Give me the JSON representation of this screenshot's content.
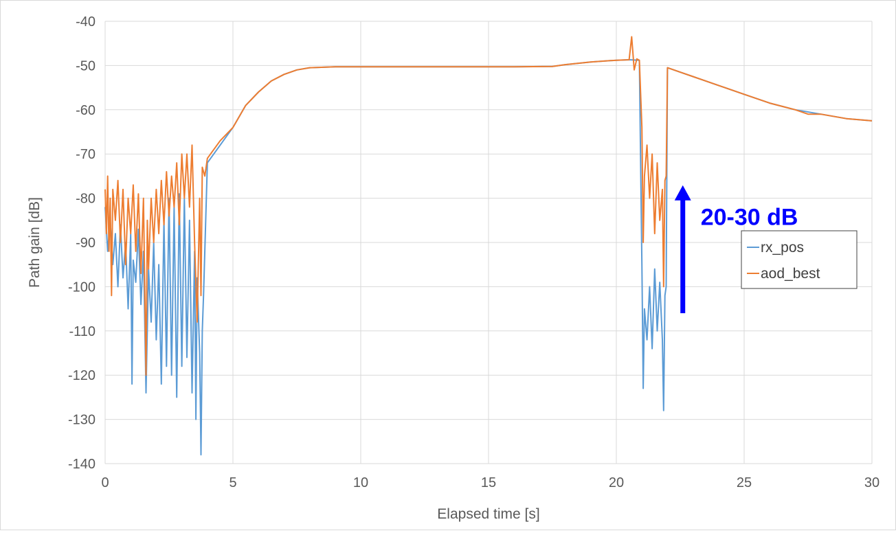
{
  "chart_data": {
    "type": "line",
    "title": "",
    "xlabel": "Elapsed time [s]",
    "ylabel": "Path gain [dB]",
    "xlim": [
      0,
      30
    ],
    "ylim": [
      -140,
      -40
    ],
    "x_ticks": [
      "0",
      "5",
      "10",
      "15",
      "20",
      "25",
      "30"
    ],
    "y_ticks": [
      "-40",
      "-50",
      "-60",
      "-70",
      "-80",
      "-90",
      "-100",
      "-110",
      "-120",
      "-130",
      "-140"
    ],
    "grid": true,
    "legend_position": "right",
    "colors": {
      "rx_pos": "#5b9bd5",
      "aod_best": "#ed7d31",
      "annotation": "#0000ff",
      "grid": "#d9d9d9"
    },
    "annotation": {
      "text": "20-30 dB",
      "arrow_from": [
        22.6,
        -106
      ],
      "arrow_to": [
        22.6,
        -78
      ]
    },
    "series": [
      {
        "name": "rx_pos",
        "color": "#5b9bd5",
        "points": [
          [
            0.0,
            -82
          ],
          [
            0.1,
            -92
          ],
          [
            0.2,
            -85
          ],
          [
            0.3,
            -95
          ],
          [
            0.4,
            -88
          ],
          [
            0.5,
            -100
          ],
          [
            0.6,
            -86
          ],
          [
            0.7,
            -98
          ],
          [
            0.8,
            -90
          ],
          [
            0.9,
            -105
          ],
          [
            1.0,
            -88
          ],
          [
            1.05,
            -122
          ],
          [
            1.1,
            -94
          ],
          [
            1.2,
            -99
          ],
          [
            1.3,
            -87
          ],
          [
            1.4,
            -104
          ],
          [
            1.5,
            -92
          ],
          [
            1.6,
            -124
          ],
          [
            1.7,
            -96
          ],
          [
            1.8,
            -108
          ],
          [
            1.9,
            -90
          ],
          [
            2.0,
            -112
          ],
          [
            2.1,
            -95
          ],
          [
            2.2,
            -122
          ],
          [
            2.3,
            -85
          ],
          [
            2.4,
            -118
          ],
          [
            2.5,
            -80
          ],
          [
            2.6,
            -120
          ],
          [
            2.7,
            -82
          ],
          [
            2.8,
            -125
          ],
          [
            2.9,
            -79
          ],
          [
            3.0,
            -118
          ],
          [
            3.1,
            -80
          ],
          [
            3.2,
            -116
          ],
          [
            3.3,
            -85
          ],
          [
            3.4,
            -124
          ],
          [
            3.5,
            -92
          ],
          [
            3.55,
            -130
          ],
          [
            3.6,
            -98
          ],
          [
            3.7,
            -115
          ],
          [
            3.75,
            -138
          ],
          [
            3.8,
            -110
          ],
          [
            3.85,
            -102
          ],
          [
            4.0,
            -72
          ],
          [
            4.5,
            -68
          ],
          [
            5.0,
            -64
          ],
          [
            5.5,
            -59
          ],
          [
            6.0,
            -56
          ],
          [
            6.5,
            -53.5
          ],
          [
            7.0,
            -52
          ],
          [
            7.5,
            -51
          ],
          [
            8.0,
            -50.5
          ],
          [
            9.0,
            -50.3
          ],
          [
            10.0,
            -50.3
          ],
          [
            12.0,
            -50.3
          ],
          [
            14.0,
            -50.3
          ],
          [
            16.0,
            -50.3
          ],
          [
            17.5,
            -50.2
          ],
          [
            18.0,
            -49.8
          ],
          [
            19.0,
            -49.2
          ],
          [
            20.0,
            -48.8
          ],
          [
            20.5,
            -48.7
          ],
          [
            20.9,
            -48.8
          ],
          [
            21.0,
            -95
          ],
          [
            21.05,
            -123
          ],
          [
            21.1,
            -105
          ],
          [
            21.2,
            -112
          ],
          [
            21.3,
            -100
          ],
          [
            21.4,
            -114
          ],
          [
            21.5,
            -96
          ],
          [
            21.6,
            -110
          ],
          [
            21.7,
            -99
          ],
          [
            21.8,
            -112
          ],
          [
            21.85,
            -128
          ],
          [
            21.9,
            -102
          ],
          [
            21.95,
            -100
          ],
          [
            22.0,
            -50.5
          ],
          [
            22.5,
            -51.5
          ],
          [
            23.0,
            -52.5
          ],
          [
            24.0,
            -54.5
          ],
          [
            25.0,
            -56.5
          ],
          [
            26.0,
            -58.5
          ],
          [
            27.0,
            -60
          ],
          [
            28.0,
            -61
          ],
          [
            29.0,
            -62
          ],
          [
            30.0,
            -62.5
          ]
        ]
      },
      {
        "name": "aod_best",
        "color": "#ed7d31",
        "points": [
          [
            0.0,
            -78
          ],
          [
            0.05,
            -88
          ],
          [
            0.1,
            -75
          ],
          [
            0.15,
            -92
          ],
          [
            0.2,
            -80
          ],
          [
            0.25,
            -102
          ],
          [
            0.3,
            -78
          ],
          [
            0.4,
            -85
          ],
          [
            0.5,
            -76
          ],
          [
            0.6,
            -90
          ],
          [
            0.7,
            -78
          ],
          [
            0.8,
            -95
          ],
          [
            0.9,
            -80
          ],
          [
            1.0,
            -88
          ],
          [
            1.1,
            -77
          ],
          [
            1.2,
            -92
          ],
          [
            1.3,
            -79
          ],
          [
            1.4,
            -97
          ],
          [
            1.5,
            -80
          ],
          [
            1.6,
            -120
          ],
          [
            1.65,
            -85
          ],
          [
            1.7,
            -96
          ],
          [
            1.8,
            -80
          ],
          [
            1.9,
            -90
          ],
          [
            2.0,
            -78
          ],
          [
            2.1,
            -88
          ],
          [
            2.2,
            -76
          ],
          [
            2.3,
            -86
          ],
          [
            2.4,
            -74
          ],
          [
            2.5,
            -84
          ],
          [
            2.6,
            -75
          ],
          [
            2.7,
            -82
          ],
          [
            2.8,
            -72
          ],
          [
            2.9,
            -86
          ],
          [
            3.0,
            -70
          ],
          [
            3.1,
            -80
          ],
          [
            3.2,
            -70
          ],
          [
            3.3,
            -82
          ],
          [
            3.4,
            -68
          ],
          [
            3.5,
            -90
          ],
          [
            3.6,
            -108
          ],
          [
            3.7,
            -80
          ],
          [
            3.75,
            -102
          ],
          [
            3.8,
            -73
          ],
          [
            3.9,
            -75
          ],
          [
            4.0,
            -71
          ],
          [
            4.5,
            -67
          ],
          [
            5.0,
            -64
          ],
          [
            5.5,
            -59
          ],
          [
            6.0,
            -56
          ],
          [
            6.5,
            -53.5
          ],
          [
            7.0,
            -52
          ],
          [
            7.5,
            -51
          ],
          [
            8.0,
            -50.5
          ],
          [
            9.0,
            -50.3
          ],
          [
            10.0,
            -50.3
          ],
          [
            12.0,
            -50.3
          ],
          [
            14.0,
            -50.3
          ],
          [
            16.0,
            -50.3
          ],
          [
            17.5,
            -50.2
          ],
          [
            18.0,
            -49.8
          ],
          [
            19.0,
            -49.2
          ],
          [
            20.0,
            -48.8
          ],
          [
            20.5,
            -48.7
          ],
          [
            20.6,
            -43.5
          ],
          [
            20.7,
            -51
          ],
          [
            20.8,
            -48.5
          ],
          [
            20.9,
            -48.8
          ],
          [
            21.0,
            -64
          ],
          [
            21.05,
            -90
          ],
          [
            21.1,
            -75
          ],
          [
            21.2,
            -68
          ],
          [
            21.3,
            -80
          ],
          [
            21.4,
            -70
          ],
          [
            21.5,
            -88
          ],
          [
            21.6,
            -72
          ],
          [
            21.7,
            -85
          ],
          [
            21.8,
            -78
          ],
          [
            21.85,
            -100
          ],
          [
            21.9,
            -76
          ],
          [
            21.95,
            -75
          ],
          [
            22.0,
            -50.5
          ],
          [
            22.5,
            -51.5
          ],
          [
            23.0,
            -52.5
          ],
          [
            24.0,
            -54.5
          ],
          [
            25.0,
            -56.5
          ],
          [
            25.5,
            -57.5
          ],
          [
            26.0,
            -58.5
          ],
          [
            27.0,
            -60
          ],
          [
            27.5,
            -61
          ],
          [
            28.0,
            -61
          ],
          [
            29.0,
            -62
          ],
          [
            30.0,
            -62.5
          ]
        ]
      }
    ]
  }
}
